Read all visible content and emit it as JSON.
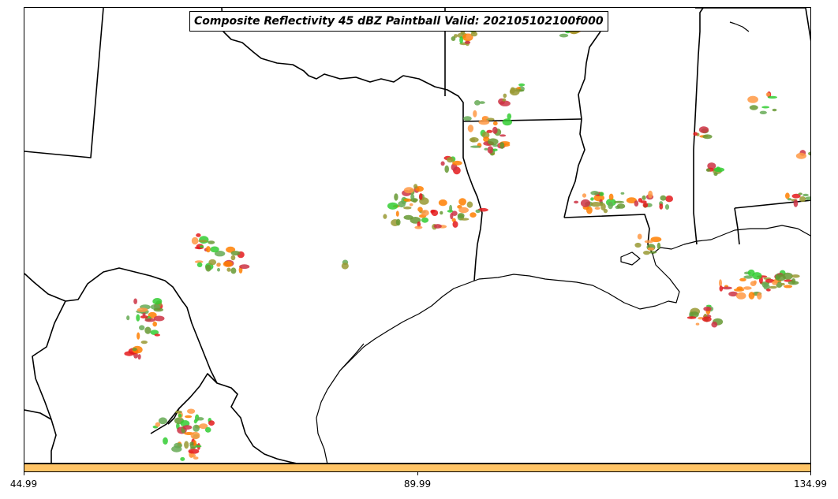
{
  "title": "Composite Reflectivity 45 dBZ Paintball Valid: 202105102100f000",
  "colorbar": {
    "color": "#ffc466",
    "ticks": [
      "44.99",
      "89.99",
      "134.99"
    ]
  },
  "map": {
    "background": "#ffffff",
    "boundary_color": "#000000",
    "paintball_colors": [
      "#ff7f00",
      "#33cc33",
      "#e41a1c",
      "#999933",
      "#669933",
      "#ff9944",
      "#cc3344",
      "#66aa55"
    ]
  }
}
